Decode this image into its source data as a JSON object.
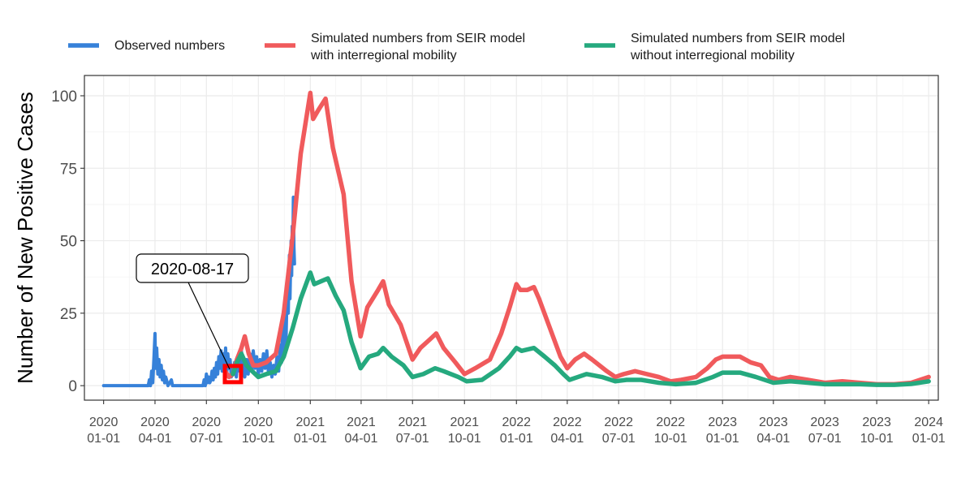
{
  "chart_data": {
    "type": "line",
    "ylabel": "Number of New Positive Cases",
    "xlabel": "",
    "ylim": [
      -5,
      107
    ],
    "xlim": [
      "2019-11-28",
      "2024-01-18"
    ],
    "y_ticks": [
      0,
      25,
      50,
      75,
      100
    ],
    "y_tick_labels": [
      "0",
      "25",
      "50",
      "75",
      "100"
    ],
    "x_ticks": [
      "2020-01-01",
      "2020-04-01",
      "2020-07-01",
      "2020-10-01",
      "2021-01-01",
      "2021-04-01",
      "2021-07-01",
      "2021-10-01",
      "2022-01-01",
      "2022-04-01",
      "2022-07-01",
      "2022-10-01",
      "2023-01-01",
      "2023-04-01",
      "2023-07-01",
      "2023-10-01",
      "2024-01-01"
    ],
    "x_tick_labels": [
      [
        "2020",
        "01-01"
      ],
      [
        "2020",
        "04-01"
      ],
      [
        "2020",
        "07-01"
      ],
      [
        "2020",
        "10-01"
      ],
      [
        "2021",
        "01-01"
      ],
      [
        "2021",
        "04-01"
      ],
      [
        "2021",
        "07-01"
      ],
      [
        "2021",
        "10-01"
      ],
      [
        "2022",
        "01-01"
      ],
      [
        "2022",
        "04-01"
      ],
      [
        "2022",
        "07-01"
      ],
      [
        "2022",
        "10-01"
      ],
      [
        "2023",
        "01-01"
      ],
      [
        "2023",
        "04-01"
      ],
      [
        "2023",
        "07-01"
      ],
      [
        "2023",
        "10-01"
      ],
      [
        "2024",
        "01-01"
      ]
    ],
    "grid": true,
    "legend_position": "top",
    "annotation": {
      "label": "2020-08-17",
      "x": "2020-08-17",
      "y": 4
    },
    "series": [
      {
        "name": "Observed numbers",
        "color": "#3681d9",
        "points": [
          [
            "2020-01-01",
            0
          ],
          [
            "2020-03-20",
            0
          ],
          [
            "2020-03-22",
            2
          ],
          [
            "2020-03-24",
            0
          ],
          [
            "2020-03-26",
            5
          ],
          [
            "2020-03-28",
            1
          ],
          [
            "2020-03-30",
            9
          ],
          [
            "2020-04-01",
            18
          ],
          [
            "2020-04-02",
            6
          ],
          [
            "2020-04-04",
            13
          ],
          [
            "2020-04-06",
            4
          ],
          [
            "2020-04-08",
            9
          ],
          [
            "2020-04-10",
            3
          ],
          [
            "2020-04-12",
            7
          ],
          [
            "2020-04-14",
            2
          ],
          [
            "2020-04-16",
            5
          ],
          [
            "2020-04-18",
            1
          ],
          [
            "2020-04-20",
            3
          ],
          [
            "2020-04-24",
            0
          ],
          [
            "2020-04-30",
            2
          ],
          [
            "2020-05-02",
            0
          ],
          [
            "2020-06-25",
            0
          ],
          [
            "2020-06-27",
            2
          ],
          [
            "2020-06-29",
            0
          ],
          [
            "2020-07-01",
            4
          ],
          [
            "2020-07-03",
            1
          ],
          [
            "2020-07-05",
            3
          ],
          [
            "2020-07-07",
            1
          ],
          [
            "2020-07-09",
            2
          ],
          [
            "2020-07-11",
            5
          ],
          [
            "2020-07-13",
            2
          ],
          [
            "2020-07-15",
            6
          ],
          [
            "2020-07-17",
            3
          ],
          [
            "2020-07-19",
            8
          ],
          [
            "2020-07-21",
            4
          ],
          [
            "2020-07-23",
            10
          ],
          [
            "2020-07-25",
            6
          ],
          [
            "2020-07-27",
            12
          ],
          [
            "2020-07-29",
            5
          ],
          [
            "2020-07-31",
            11
          ],
          [
            "2020-08-02",
            7
          ],
          [
            "2020-08-04",
            13
          ],
          [
            "2020-08-06",
            4
          ],
          [
            "2020-08-08",
            11
          ],
          [
            "2020-08-10",
            6
          ],
          [
            "2020-08-12",
            9
          ],
          [
            "2020-08-14",
            3
          ],
          [
            "2020-08-17",
            4
          ],
          [
            "2020-08-20",
            8
          ],
          [
            "2020-08-23",
            3
          ],
          [
            "2020-08-26",
            10
          ],
          [
            "2020-08-29",
            5
          ],
          [
            "2020-09-01",
            12
          ],
          [
            "2020-09-04",
            6
          ],
          [
            "2020-09-07",
            3
          ],
          [
            "2020-09-10",
            9
          ],
          [
            "2020-09-13",
            4
          ],
          [
            "2020-09-16",
            11
          ],
          [
            "2020-09-19",
            5
          ],
          [
            "2020-09-22",
            12
          ],
          [
            "2020-09-25",
            6
          ],
          [
            "2020-09-28",
            10
          ],
          [
            "2020-10-01",
            4
          ],
          [
            "2020-10-04",
            9
          ],
          [
            "2020-10-07",
            5
          ],
          [
            "2020-10-10",
            11
          ],
          [
            "2020-10-13",
            6
          ],
          [
            "2020-10-16",
            12
          ],
          [
            "2020-10-19",
            4
          ],
          [
            "2020-10-22",
            8
          ],
          [
            "2020-10-25",
            3
          ],
          [
            "2020-10-28",
            7
          ],
          [
            "2020-10-31",
            4
          ],
          [
            "2020-11-03",
            10
          ],
          [
            "2020-11-06",
            5
          ],
          [
            "2020-11-09",
            14
          ],
          [
            "2020-11-11",
            8
          ],
          [
            "2020-11-13",
            20
          ],
          [
            "2020-11-15",
            12
          ],
          [
            "2020-11-17",
            27
          ],
          [
            "2020-11-19",
            15
          ],
          [
            "2020-11-21",
            35
          ],
          [
            "2020-11-23",
            25
          ],
          [
            "2020-11-25",
            45
          ],
          [
            "2020-11-26",
            30
          ],
          [
            "2020-11-28",
            50
          ],
          [
            "2020-11-29",
            38
          ],
          [
            "2020-11-30",
            55
          ],
          [
            "2020-12-01",
            45
          ],
          [
            "2020-12-02",
            65
          ],
          [
            "2020-12-03",
            48
          ],
          [
            "2020-12-04",
            42
          ]
        ]
      },
      {
        "name": "Simulated numbers from SEIR model\nwith interregional mobility",
        "color": "#f05a5c",
        "points": [
          [
            "2020-08-03",
            5
          ],
          [
            "2020-08-10",
            3
          ],
          [
            "2020-08-17",
            4
          ],
          [
            "2020-08-24",
            9
          ],
          [
            "2020-09-01",
            13
          ],
          [
            "2020-09-07",
            17
          ],
          [
            "2020-09-14",
            11
          ],
          [
            "2020-09-22",
            7
          ],
          [
            "2020-10-01",
            7
          ],
          [
            "2020-10-15",
            8
          ],
          [
            "2020-11-01",
            11
          ],
          [
            "2020-11-15",
            25
          ],
          [
            "2020-12-01",
            52
          ],
          [
            "2020-12-15",
            80
          ],
          [
            "2021-01-01",
            101
          ],
          [
            "2021-01-06",
            92
          ],
          [
            "2021-01-15",
            95
          ],
          [
            "2021-01-28",
            99
          ],
          [
            "2021-02-10",
            82
          ],
          [
            "2021-03-01",
            66
          ],
          [
            "2021-03-15",
            36
          ],
          [
            "2021-03-31",
            17
          ],
          [
            "2021-04-12",
            27
          ],
          [
            "2021-05-01",
            33
          ],
          [
            "2021-05-10",
            36
          ],
          [
            "2021-05-20",
            28
          ],
          [
            "2021-06-10",
            21
          ],
          [
            "2021-07-01",
            9
          ],
          [
            "2021-07-15",
            13
          ],
          [
            "2021-08-01",
            16
          ],
          [
            "2021-08-12",
            18
          ],
          [
            "2021-08-25",
            13
          ],
          [
            "2021-09-15",
            8
          ],
          [
            "2021-10-01",
            4
          ],
          [
            "2021-10-20",
            6
          ],
          [
            "2021-11-15",
            9
          ],
          [
            "2021-12-05",
            18
          ],
          [
            "2021-12-20",
            27
          ],
          [
            "2022-01-01",
            35
          ],
          [
            "2022-01-08",
            33
          ],
          [
            "2022-01-20",
            33
          ],
          [
            "2022-02-01",
            34
          ],
          [
            "2022-02-10",
            30
          ],
          [
            "2022-03-01",
            20
          ],
          [
            "2022-03-20",
            10
          ],
          [
            "2022-04-01",
            6
          ],
          [
            "2022-04-15",
            9
          ],
          [
            "2022-05-01",
            11
          ],
          [
            "2022-05-15",
            9
          ],
          [
            "2022-06-10",
            5
          ],
          [
            "2022-06-25",
            3
          ],
          [
            "2022-07-10",
            4
          ],
          [
            "2022-07-30",
            5
          ],
          [
            "2022-08-20",
            4
          ],
          [
            "2022-09-10",
            3
          ],
          [
            "2022-10-01",
            1.5
          ],
          [
            "2022-10-20",
            2
          ],
          [
            "2022-11-15",
            3
          ],
          [
            "2022-12-05",
            6
          ],
          [
            "2022-12-20",
            9
          ],
          [
            "2023-01-01",
            10
          ],
          [
            "2023-01-15",
            10
          ],
          [
            "2023-02-01",
            10
          ],
          [
            "2023-02-20",
            8
          ],
          [
            "2023-03-10",
            7
          ],
          [
            "2023-03-25",
            3
          ],
          [
            "2023-04-10",
            2
          ],
          [
            "2023-05-01",
            3
          ],
          [
            "2023-06-01",
            2
          ],
          [
            "2023-07-01",
            1
          ],
          [
            "2023-08-01",
            1.5
          ],
          [
            "2023-09-01",
            1
          ],
          [
            "2023-10-01",
            0.5
          ],
          [
            "2023-11-01",
            0.5
          ],
          [
            "2023-12-01",
            1
          ],
          [
            "2024-01-01",
            3
          ]
        ]
      },
      {
        "name": "Simulated numbers from SEIR model\nwithout interregional mobility",
        "color": "#25a97e",
        "points": [
          [
            "2020-08-17",
            4
          ],
          [
            "2020-08-24",
            8
          ],
          [
            "2020-09-01",
            11
          ],
          [
            "2020-09-10",
            7
          ],
          [
            "2020-09-20",
            5
          ],
          [
            "2020-10-01",
            3
          ],
          [
            "2020-10-15",
            4
          ],
          [
            "2020-11-01",
            5
          ],
          [
            "2020-11-15",
            10
          ],
          [
            "2020-12-01",
            20
          ],
          [
            "2020-12-15",
            30
          ],
          [
            "2021-01-01",
            39
          ],
          [
            "2021-01-08",
            35
          ],
          [
            "2021-01-20",
            36
          ],
          [
            "2021-02-01",
            37
          ],
          [
            "2021-02-15",
            31
          ],
          [
            "2021-03-01",
            26
          ],
          [
            "2021-03-15",
            15
          ],
          [
            "2021-03-31",
            6
          ],
          [
            "2021-04-15",
            10
          ],
          [
            "2021-05-01",
            11
          ],
          [
            "2021-05-10",
            13
          ],
          [
            "2021-05-25",
            10
          ],
          [
            "2021-06-15",
            7
          ],
          [
            "2021-07-01",
            3
          ],
          [
            "2021-07-20",
            4
          ],
          [
            "2021-08-10",
            6
          ],
          [
            "2021-08-25",
            5
          ],
          [
            "2021-09-20",
            3
          ],
          [
            "2021-10-05",
            1.5
          ],
          [
            "2021-11-01",
            2
          ],
          [
            "2021-12-01",
            6
          ],
          [
            "2021-12-20",
            10
          ],
          [
            "2022-01-01",
            13
          ],
          [
            "2022-01-10",
            12
          ],
          [
            "2022-02-01",
            13
          ],
          [
            "2022-02-20",
            10
          ],
          [
            "2022-03-10",
            7
          ],
          [
            "2022-03-25",
            4
          ],
          [
            "2022-04-05",
            2
          ],
          [
            "2022-04-20",
            3
          ],
          [
            "2022-05-05",
            4
          ],
          [
            "2022-06-01",
            3
          ],
          [
            "2022-06-25",
            1.5
          ],
          [
            "2022-07-15",
            2
          ],
          [
            "2022-08-10",
            2
          ],
          [
            "2022-09-10",
            1
          ],
          [
            "2022-10-10",
            0.5
          ],
          [
            "2022-11-15",
            1
          ],
          [
            "2022-12-15",
            3
          ],
          [
            "2023-01-01",
            4.5
          ],
          [
            "2023-02-01",
            4.5
          ],
          [
            "2023-03-01",
            3
          ],
          [
            "2023-04-01",
            1
          ],
          [
            "2023-05-01",
            1.5
          ],
          [
            "2023-06-01",
            1
          ],
          [
            "2023-07-01",
            0.5
          ],
          [
            "2023-08-01",
            0.5
          ],
          [
            "2023-09-01",
            0.5
          ],
          [
            "2023-10-01",
            0.3
          ],
          [
            "2023-11-01",
            0.3
          ],
          [
            "2023-12-01",
            0.6
          ],
          [
            "2024-01-01",
            1.5
          ]
        ]
      }
    ]
  },
  "legend": {
    "items": [
      {
        "lines": [
          "Observed numbers"
        ],
        "color": "#3681d9"
      },
      {
        "lines": [
          "Simulated numbers from SEIR model",
          "with interregional mobility"
        ],
        "color": "#f05a5c"
      },
      {
        "lines": [
          "Simulated numbers from SEIR model",
          "without interregional mobility"
        ],
        "color": "#25a97e"
      }
    ]
  }
}
